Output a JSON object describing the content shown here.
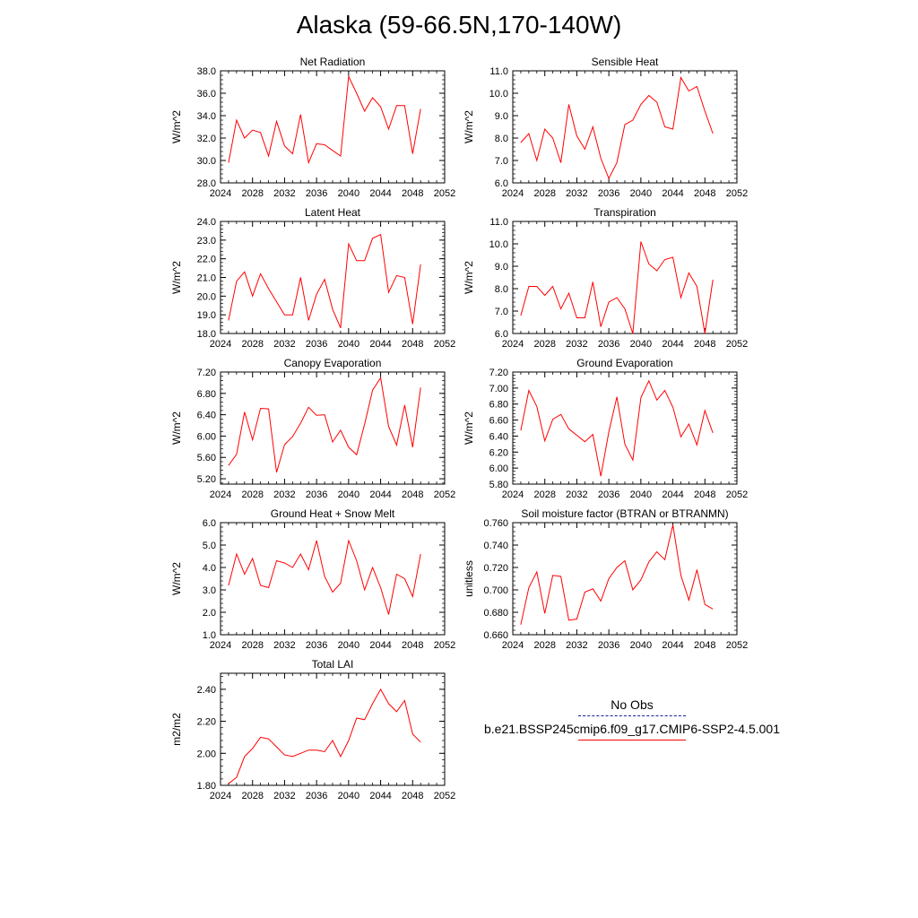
{
  "title": "Alaska (59-66.5N,170-140W)",
  "legend": {
    "obs_label": "No Obs",
    "model_label": "b.e21.BSSP245cmip6.f09_g17.CMIP6-SSP2-4.5.001",
    "obs_color": "#1a1a9a",
    "model_color": "#ff0000"
  },
  "chart_data": [
    {
      "type": "line",
      "title": "Net Radiation",
      "ylabel": "W/m^2",
      "xlim": [
        2024,
        2052
      ],
      "xticks": [
        2024,
        2028,
        2032,
        2036,
        2040,
        2044,
        2048,
        2052
      ],
      "ylim": [
        28.0,
        38.0
      ],
      "yticks": [
        "28.0",
        "30.0",
        "32.0",
        "34.0",
        "36.0",
        "38.0"
      ],
      "x": [
        2025,
        2026,
        2027,
        2028,
        2029,
        2030,
        2031,
        2032,
        2033,
        2034,
        2035,
        2036,
        2037,
        2038,
        2039,
        2040,
        2041,
        2042,
        2043,
        2044,
        2045,
        2046,
        2047,
        2048,
        2049
      ],
      "series": [
        {
          "color": "#ff0000",
          "values": [
            29.8,
            33.6,
            32.0,
            32.7,
            32.5,
            30.4,
            33.5,
            31.3,
            30.6,
            34.1,
            29.8,
            31.5,
            31.4,
            30.9,
            30.4,
            37.5,
            36.0,
            34.4,
            35.6,
            34.8,
            32.8,
            34.9,
            34.9,
            30.6,
            34.6
          ]
        }
      ]
    },
    {
      "type": "line",
      "title": "Sensible Heat",
      "ylabel": "W/m^2",
      "xlim": [
        2024,
        2052
      ],
      "xticks": [
        2024,
        2028,
        2032,
        2036,
        2040,
        2044,
        2048,
        2052
      ],
      "ylim": [
        6.0,
        11.0
      ],
      "yticks": [
        "6.0",
        "7.0",
        "8.0",
        "9.0",
        "10.0",
        "11.0"
      ],
      "x": [
        2025,
        2026,
        2027,
        2028,
        2029,
        2030,
        2031,
        2032,
        2033,
        2034,
        2035,
        2036,
        2037,
        2038,
        2039,
        2040,
        2041,
        2042,
        2043,
        2044,
        2045,
        2046,
        2047,
        2048,
        2049
      ],
      "series": [
        {
          "color": "#ff0000",
          "values": [
            7.8,
            8.2,
            7.0,
            8.4,
            8.0,
            6.9,
            9.5,
            8.1,
            7.5,
            8.5,
            7.1,
            6.2,
            6.9,
            8.6,
            8.8,
            9.5,
            9.9,
            9.6,
            8.5,
            8.4,
            10.7,
            10.1,
            10.3,
            9.2,
            8.2
          ]
        }
      ]
    },
    {
      "type": "line",
      "title": "Latent Heat",
      "ylabel": "W/m^2",
      "xlim": [
        2024,
        2052
      ],
      "xticks": [
        2024,
        2028,
        2032,
        2036,
        2040,
        2044,
        2048,
        2052
      ],
      "ylim": [
        18.0,
        24.0
      ],
      "yticks": [
        "18.0",
        "19.0",
        "20.0",
        "21.0",
        "22.0",
        "23.0",
        "24.0"
      ],
      "x": [
        2025,
        2026,
        2027,
        2028,
        2029,
        2030,
        2031,
        2032,
        2033,
        2034,
        2035,
        2036,
        2037,
        2038,
        2039,
        2040,
        2041,
        2042,
        2043,
        2044,
        2045,
        2046,
        2047,
        2048,
        2049
      ],
      "series": [
        {
          "color": "#ff0000",
          "values": [
            18.7,
            20.8,
            21.3,
            20.0,
            21.2,
            20.4,
            19.7,
            19.0,
            19.0,
            21.0,
            18.7,
            20.1,
            20.9,
            19.3,
            18.3,
            22.8,
            21.9,
            21.9,
            23.1,
            23.3,
            20.2,
            21.1,
            21.0,
            18.5,
            21.7
          ]
        }
      ]
    },
    {
      "type": "line",
      "title": "Transpiration",
      "ylabel": "W/m^2",
      "xlim": [
        2024,
        2052
      ],
      "xticks": [
        2024,
        2028,
        2032,
        2036,
        2040,
        2044,
        2048,
        2052
      ],
      "ylim": [
        6.0,
        11.0
      ],
      "yticks": [
        "6.0",
        "7.0",
        "8.0",
        "9.0",
        "10.0",
        "11.0"
      ],
      "x": [
        2025,
        2026,
        2027,
        2028,
        2029,
        2030,
        2031,
        2032,
        2033,
        2034,
        2035,
        2036,
        2037,
        2038,
        2039,
        2040,
        2041,
        2042,
        2043,
        2044,
        2045,
        2046,
        2047,
        2048,
        2049
      ],
      "series": [
        {
          "color": "#ff0000",
          "values": [
            6.8,
            8.1,
            8.1,
            7.7,
            8.1,
            7.1,
            7.8,
            6.7,
            6.7,
            8.3,
            6.3,
            7.4,
            7.6,
            7.1,
            6.0,
            10.1,
            9.1,
            8.8,
            9.3,
            9.4,
            7.6,
            8.7,
            8.1,
            6.0,
            8.4
          ]
        }
      ]
    },
    {
      "type": "line",
      "title": "Canopy Evaporation",
      "ylabel": "W/m^2",
      "xlim": [
        2024,
        2052
      ],
      "xticks": [
        2024,
        2028,
        2032,
        2036,
        2040,
        2044,
        2048,
        2052
      ],
      "ylim": [
        5.1,
        7.2
      ],
      "yticks": [
        "5.20",
        "5.60",
        "6.00",
        "6.40",
        "6.80",
        "7.20"
      ],
      "x": [
        2025,
        2026,
        2027,
        2028,
        2029,
        2030,
        2031,
        2032,
        2033,
        2034,
        2035,
        2036,
        2037,
        2038,
        2039,
        2040,
        2041,
        2042,
        2043,
        2044,
        2045,
        2046,
        2047,
        2048,
        2049
      ],
      "series": [
        {
          "color": "#ff0000",
          "values": [
            5.45,
            5.66,
            6.45,
            5.93,
            6.52,
            6.51,
            5.32,
            5.84,
            5.99,
            6.24,
            6.54,
            6.39,
            6.4,
            5.89,
            6.11,
            5.79,
            5.65,
            6.22,
            6.86,
            7.09,
            6.18,
            5.83,
            6.58,
            5.79,
            6.91
          ]
        }
      ]
    },
    {
      "type": "line",
      "title": "Ground Evaporation",
      "ylabel": "W/m^2",
      "xlim": [
        2024,
        2052
      ],
      "xticks": [
        2024,
        2028,
        2032,
        2036,
        2040,
        2044,
        2048,
        2052
      ],
      "ylim": [
        5.8,
        7.2
      ],
      "yticks": [
        "5.80",
        "6.00",
        "6.20",
        "6.40",
        "6.60",
        "6.80",
        "7.00",
        "7.20"
      ],
      "x": [
        2025,
        2026,
        2027,
        2028,
        2029,
        2030,
        2031,
        2032,
        2033,
        2034,
        2035,
        2036,
        2037,
        2038,
        2039,
        2040,
        2041,
        2042,
        2043,
        2044,
        2045,
        2046,
        2047,
        2048,
        2049
      ],
      "series": [
        {
          "color": "#ff0000",
          "values": [
            6.47,
            6.97,
            6.77,
            6.34,
            6.61,
            6.67,
            6.49,
            6.41,
            6.33,
            6.42,
            5.9,
            6.45,
            6.89,
            6.3,
            6.1,
            6.88,
            7.09,
            6.85,
            6.97,
            6.76,
            6.39,
            6.55,
            6.29,
            6.72,
            6.44
          ]
        }
      ]
    },
    {
      "type": "line",
      "title": "Ground Heat + Snow Melt",
      "ylabel": "W/m^2",
      "xlim": [
        2024,
        2052
      ],
      "xticks": [
        2024,
        2028,
        2032,
        2036,
        2040,
        2044,
        2048,
        2052
      ],
      "ylim": [
        1.0,
        6.0
      ],
      "yticks": [
        "1.0",
        "2.0",
        "3.0",
        "4.0",
        "5.0",
        "6.0"
      ],
      "x": [
        2025,
        2026,
        2027,
        2028,
        2029,
        2030,
        2031,
        2032,
        2033,
        2034,
        2035,
        2036,
        2037,
        2038,
        2039,
        2040,
        2041,
        2042,
        2043,
        2044,
        2045,
        2046,
        2047,
        2048,
        2049
      ],
      "series": [
        {
          "color": "#ff0000",
          "values": [
            3.2,
            4.6,
            3.7,
            4.4,
            3.2,
            3.1,
            4.3,
            4.2,
            4.0,
            4.6,
            3.9,
            5.2,
            3.6,
            2.9,
            3.3,
            5.2,
            4.3,
            3.0,
            4.0,
            3.1,
            1.9,
            3.7,
            3.5,
            2.7,
            4.6
          ]
        }
      ]
    },
    {
      "type": "line",
      "title": "Soil moisture factor (BTRAN or BTRANMN)",
      "ylabel": "unitless",
      "xlim": [
        2024,
        2052
      ],
      "xticks": [
        2024,
        2028,
        2032,
        2036,
        2040,
        2044,
        2048,
        2052
      ],
      "ylim": [
        0.66,
        0.76
      ],
      "yticks": [
        "0.660",
        "0.680",
        "0.700",
        "0.720",
        "0.740",
        "0.760"
      ],
      "x": [
        2025,
        2026,
        2027,
        2028,
        2029,
        2030,
        2031,
        2032,
        2033,
        2034,
        2035,
        2036,
        2037,
        2038,
        2039,
        2040,
        2041,
        2042,
        2043,
        2044,
        2045,
        2046,
        2047,
        2048,
        2049
      ],
      "series": [
        {
          "color": "#ff0000",
          "values": [
            0.669,
            0.702,
            0.716,
            0.679,
            0.713,
            0.712,
            0.673,
            0.674,
            0.698,
            0.701,
            0.69,
            0.71,
            0.72,
            0.726,
            0.7,
            0.709,
            0.725,
            0.734,
            0.727,
            0.758,
            0.713,
            0.691,
            0.718,
            0.687,
            0.683
          ]
        }
      ]
    },
    {
      "type": "line",
      "title": "Total LAI",
      "ylabel": "m2/m2",
      "xlim": [
        2024,
        2052
      ],
      "xticks": [
        2024,
        2028,
        2032,
        2036,
        2040,
        2044,
        2048,
        2052
      ],
      "ylim": [
        1.8,
        2.5
      ],
      "yticks": [
        "1.80",
        "2.00",
        "2.20",
        "2.40"
      ],
      "x": [
        2025,
        2026,
        2027,
        2028,
        2029,
        2030,
        2031,
        2032,
        2033,
        2034,
        2035,
        2036,
        2037,
        2038,
        2039,
        2040,
        2041,
        2042,
        2043,
        2044,
        2045,
        2046,
        2047,
        2048,
        2049
      ],
      "series": [
        {
          "color": "#ff0000",
          "values": [
            1.81,
            1.85,
            1.98,
            2.03,
            2.1,
            2.09,
            2.04,
            1.99,
            1.98,
            2.0,
            2.02,
            2.02,
            2.01,
            2.08,
            1.98,
            2.08,
            2.22,
            2.21,
            2.31,
            2.4,
            2.31,
            2.26,
            2.33,
            2.12,
            2.07
          ]
        }
      ]
    }
  ]
}
